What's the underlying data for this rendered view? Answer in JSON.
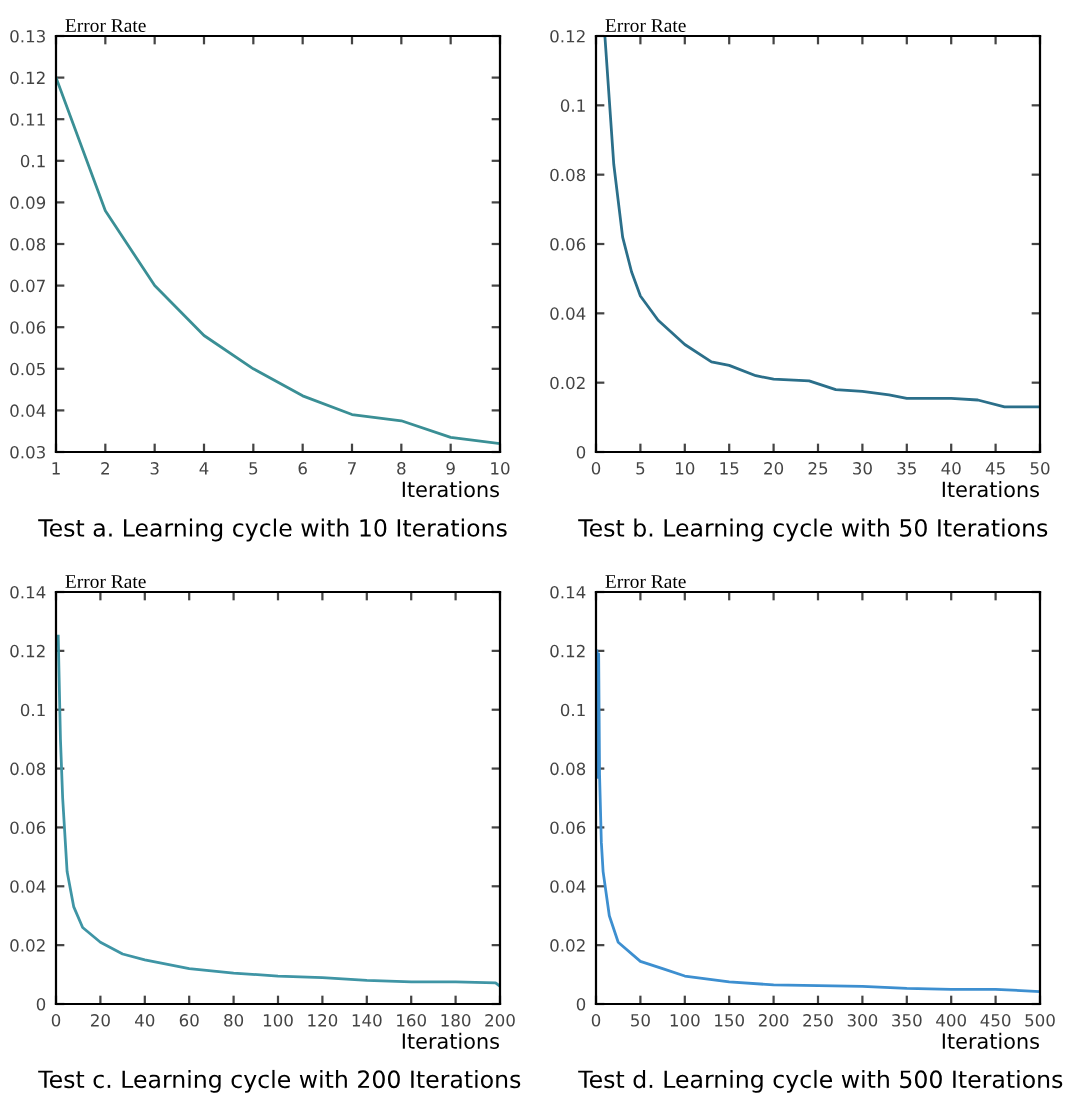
{
  "chart_data": [
    {
      "type": "line",
      "title": "Test a. Learning cycle with 10 Iterations",
      "ylabel": "Error Rate",
      "xlabel": "Iterations",
      "x": [
        1,
        2,
        3,
        4,
        5,
        6,
        7,
        8,
        9,
        10
      ],
      "series": [
        {
          "color": "#3a8f95",
          "values": [
            0.12,
            0.088,
            0.07,
            0.058,
            0.05,
            0.0435,
            0.039,
            0.0375,
            0.0335,
            0.032
          ]
        }
      ],
      "xlim": [
        1,
        10
      ],
      "xticks": [
        1,
        2,
        3,
        4,
        5,
        6,
        7,
        8,
        9,
        10
      ],
      "ylim": [
        0.03,
        0.13
      ],
      "yticks": [
        0.03,
        0.04,
        0.05,
        0.06,
        0.07,
        0.08,
        0.09,
        0.1,
        0.11,
        0.12,
        0.13
      ],
      "grid": false,
      "legend": false
    },
    {
      "type": "line",
      "title": "Test b. Learning cycle with 50 Iterations",
      "ylabel": "Error Rate",
      "xlabel": "Iterations",
      "x": [
        1,
        2,
        3,
        4,
        5,
        7,
        10,
        13,
        15,
        18,
        20,
        24,
        27,
        30,
        33,
        35,
        40,
        43,
        46,
        50
      ],
      "series": [
        {
          "color": "#2b6f8a",
          "values": [
            0.12,
            0.083,
            0.062,
            0.052,
            0.045,
            0.038,
            0.031,
            0.026,
            0.025,
            0.022,
            0.021,
            0.0205,
            0.018,
            0.0175,
            0.0165,
            0.0155,
            0.0155,
            0.015,
            0.013,
            0.013
          ]
        }
      ],
      "xlim": [
        0,
        50
      ],
      "xticks": [
        0,
        5,
        10,
        15,
        20,
        25,
        30,
        35,
        40,
        45,
        50
      ],
      "ylim": [
        0,
        0.12
      ],
      "yticks": [
        0,
        0.02,
        0.04,
        0.06,
        0.08,
        0.1,
        0.12
      ],
      "grid": false,
      "legend": false
    },
    {
      "type": "line",
      "title": "Test c. Learning cycle with 200 Iterations",
      "ylabel": "Error Rate",
      "xlabel": "Iterations",
      "x": [
        1,
        2,
        3,
        5,
        8,
        12,
        20,
        30,
        40,
        60,
        80,
        100,
        120,
        140,
        160,
        180,
        198,
        200
      ],
      "series": [
        {
          "color": "#3f95a5",
          "values": [
            0.125,
            0.09,
            0.07,
            0.045,
            0.033,
            0.026,
            0.021,
            0.017,
            0.015,
            0.012,
            0.0105,
            0.0095,
            0.009,
            0.008,
            0.0075,
            0.0075,
            0.0072,
            0.006
          ]
        }
      ],
      "xlim": [
        0,
        200
      ],
      "xticks": [
        0,
        20,
        40,
        60,
        80,
        100,
        120,
        140,
        160,
        180,
        200
      ],
      "ylim": [
        0,
        0.14
      ],
      "yticks": [
        0,
        0.02,
        0.04,
        0.06,
        0.08,
        0.1,
        0.12,
        0.14
      ],
      "grid": false,
      "legend": false
    },
    {
      "type": "line",
      "title": "Test d. Learning cycle with 500 Iterations",
      "ylabel": "Error Rate",
      "xlabel": "Iterations",
      "x": [
        1,
        2,
        3,
        4,
        6,
        8,
        15,
        25,
        50,
        75,
        100,
        150,
        200,
        300,
        350,
        400,
        450,
        500
      ],
      "series": [
        {
          "color": "#3d8fd0",
          "values": [
            0.12,
            0.077,
            0.119,
            0.078,
            0.055,
            0.045,
            0.03,
            0.021,
            0.0145,
            0.012,
            0.0095,
            0.0075,
            0.0065,
            0.006,
            0.0053,
            0.005,
            0.005,
            0.0042
          ]
        }
      ],
      "xlim": [
        0,
        500
      ],
      "xticks": [
        0,
        50,
        100,
        150,
        200,
        250,
        300,
        350,
        400,
        450,
        500
      ],
      "ylim": [
        0,
        0.14
      ],
      "yticks": [
        0,
        0.02,
        0.04,
        0.06,
        0.08,
        0.1,
        0.12,
        0.14
      ],
      "grid": false,
      "legend": false
    }
  ]
}
